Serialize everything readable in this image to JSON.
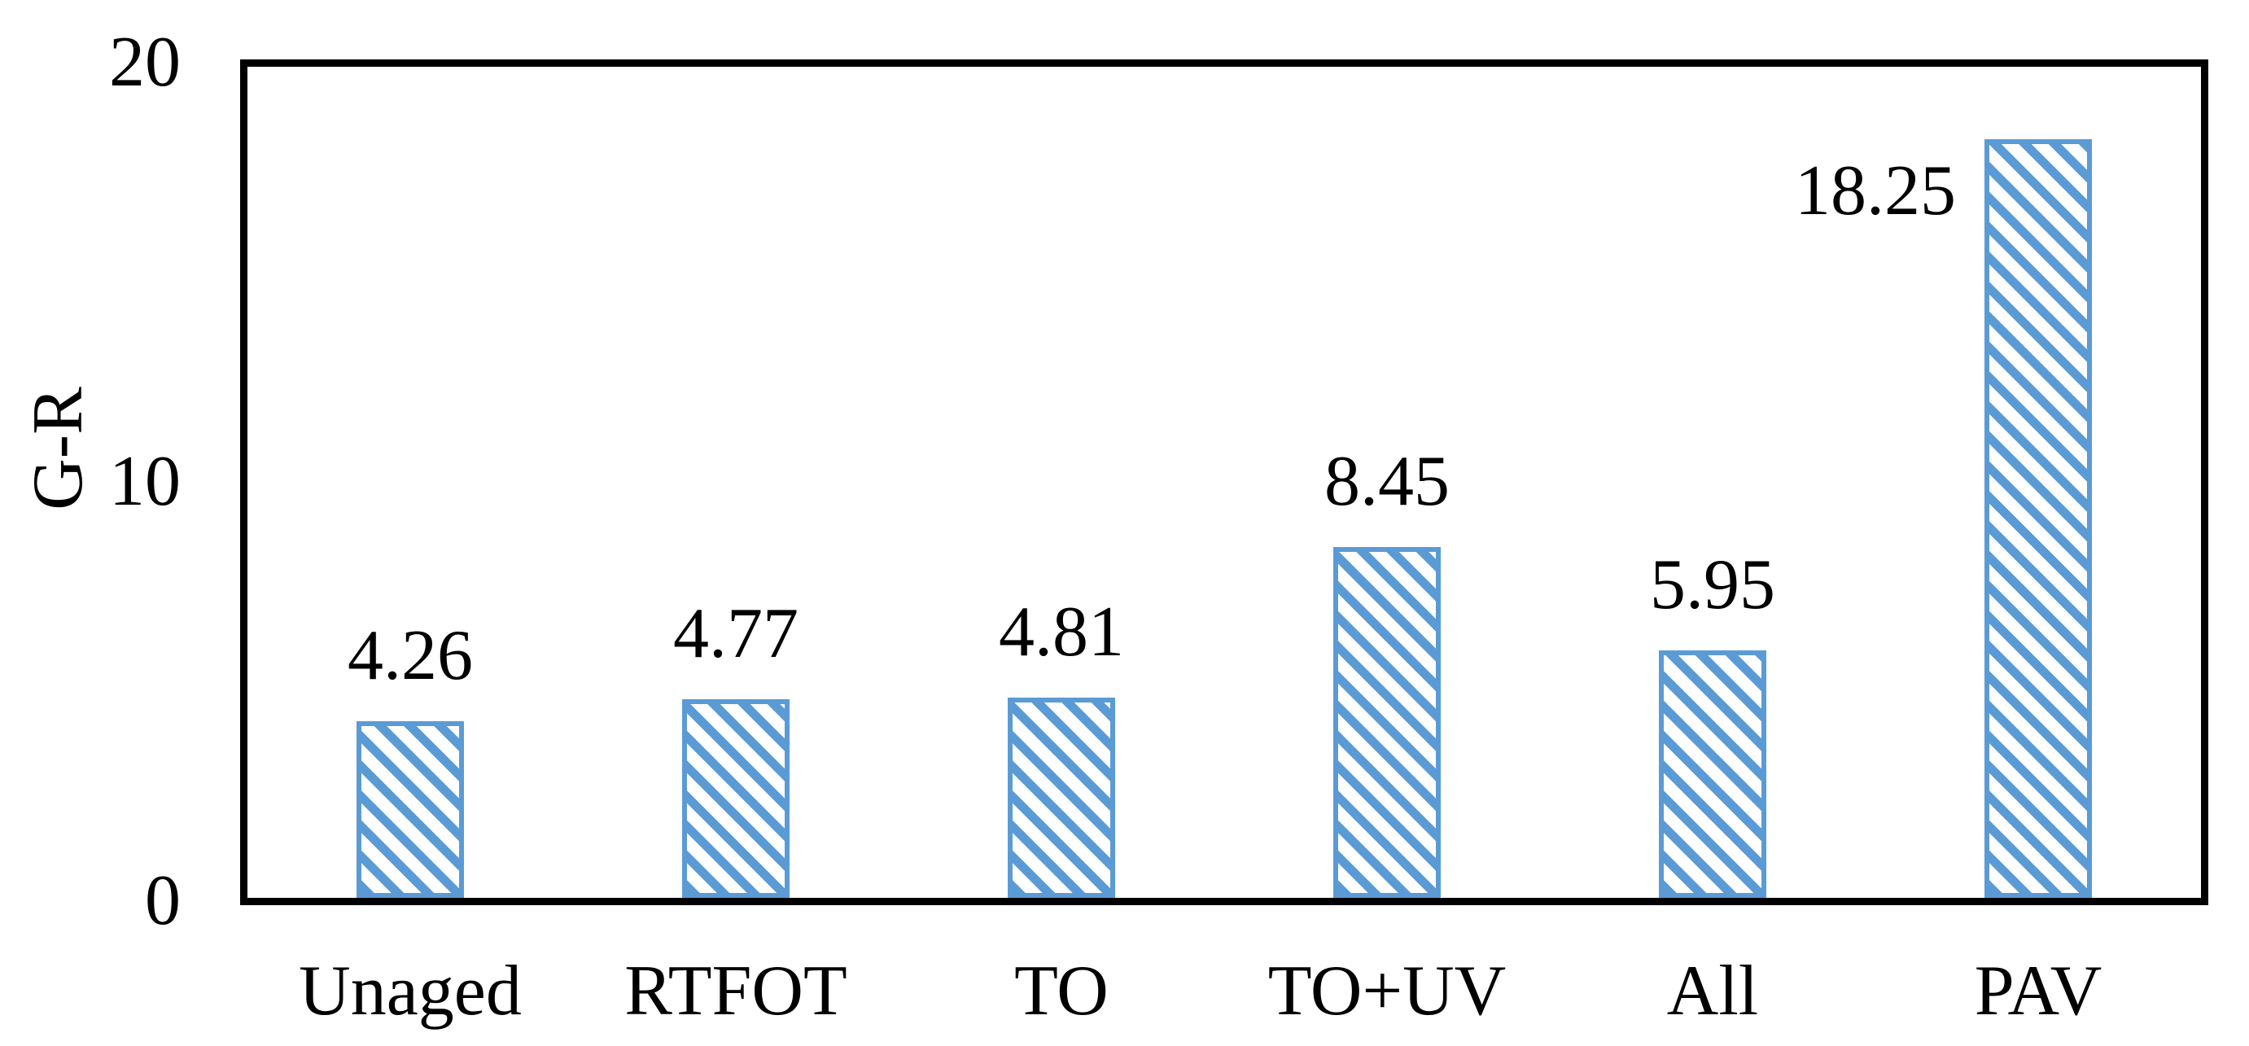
{
  "chart_data": {
    "type": "bar",
    "title": "",
    "xlabel": "",
    "ylabel": "G-R",
    "categories": [
      "Unaged",
      "RTFOT",
      "TO",
      "TO+UV",
      "All",
      "PAV"
    ],
    "values": [
      4.26,
      4.77,
      4.81,
      8.45,
      5.95,
      18.25
    ],
    "value_labels": [
      "4.26",
      "4.77",
      "4.81",
      "8.45",
      "5.95",
      "18.25"
    ],
    "label_positions": [
      "above",
      "above",
      "above",
      "above",
      "above",
      "left"
    ],
    "ylim": [
      0,
      20
    ],
    "yticks": [
      0,
      10,
      20
    ],
    "ytick_labels": [
      "0",
      "10",
      "20"
    ],
    "grid": "off",
    "legend": "none",
    "bar_fill_pattern": "diagonal-down-hatch",
    "bar_color": "#5B9BD5",
    "bar_pattern_bg": "#FFFFFF",
    "axis_color": "#000000",
    "text_color": "#000000"
  }
}
